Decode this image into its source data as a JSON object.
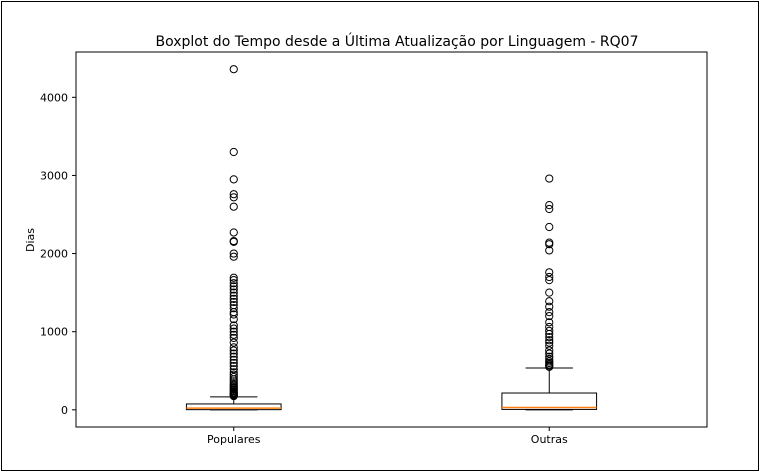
{
  "chart_data": {
    "type": "boxplot",
    "title": "Boxplot do Tempo desde a Última Atualização por Linguagem - RQ07",
    "xlabel": "",
    "ylabel": "Dias",
    "categories": [
      "Populares",
      "Outras"
    ],
    "ylim": [
      -220,
      4580
    ],
    "yticks": [
      0,
      1000,
      2000,
      3000,
      4000
    ],
    "grid": false,
    "colors": {
      "box": "#000000",
      "median": "#ff7f0e",
      "flier": "#000000"
    },
    "boxes": [
      {
        "name": "Populares",
        "whisker_low": 0,
        "q1": 2,
        "median": 22,
        "q3": 75,
        "whisker_high": 165,
        "outliers": [
          175,
          185,
          195,
          205,
          215,
          225,
          240,
          255,
          270,
          285,
          300,
          320,
          340,
          365,
          390,
          420,
          450,
          480,
          520,
          560,
          600,
          640,
          680,
          720,
          760,
          800,
          860,
          920,
          960,
          1000,
          1040,
          1080,
          1160,
          1220,
          1250,
          1300,
          1340,
          1380,
          1420,
          1460,
          1500,
          1540,
          1580,
          1620,
          1660,
          1690,
          1960,
          2000,
          2150,
          2160,
          2270,
          2600,
          2720,
          2760,
          2950,
          3300,
          4360
        ]
      },
      {
        "name": "Outras",
        "whisker_low": 0,
        "q1": 5,
        "median": 30,
        "q3": 215,
        "whisker_high": 535,
        "outliers": [
          550,
          565,
          580,
          600,
          620,
          650,
          680,
          720,
          760,
          820,
          860,
          890,
          930,
          970,
          1010,
          1060,
          1120,
          1200,
          1250,
          1320,
          1390,
          1500,
          1660,
          1700,
          1760,
          2040,
          2120,
          2140,
          2340,
          2570,
          2620,
          2960
        ]
      }
    ]
  }
}
